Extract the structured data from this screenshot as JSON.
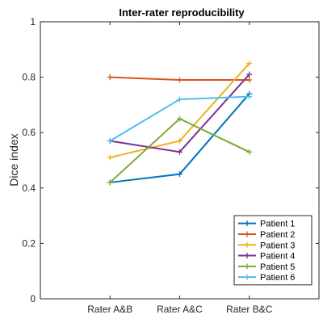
{
  "chart_data": {
    "type": "line",
    "title": "Inter-rater reproducibility",
    "xlabel": "",
    "ylabel": "Dice index",
    "categories": [
      "Rater A&B",
      "Rater A&C",
      "Rater B&C"
    ],
    "ylim": [
      0,
      1
    ],
    "yticks": [
      "0",
      "0.2",
      "0.4",
      "0.6",
      "0.8",
      "1"
    ],
    "grid": false,
    "legend_position": "bottom-right",
    "series": [
      {
        "name": "Patient 1",
        "color": "#0072BD",
        "values": [
          0.42,
          0.45,
          0.74
        ]
      },
      {
        "name": "Patient 2",
        "color": "#D95319",
        "values": [
          0.8,
          0.79,
          0.79
        ]
      },
      {
        "name": "Patient 3",
        "color": "#EDB120",
        "values": [
          0.51,
          0.57,
          0.85
        ]
      },
      {
        "name": "Patient 4",
        "color": "#7E2F8E",
        "values": [
          0.57,
          0.53,
          0.81
        ]
      },
      {
        "name": "Patient 5",
        "color": "#77AC30",
        "values": [
          0.42,
          0.65,
          0.53
        ]
      },
      {
        "name": "Patient 6",
        "color": "#4DBEEE",
        "values": [
          0.57,
          0.72,
          0.73
        ]
      }
    ]
  }
}
